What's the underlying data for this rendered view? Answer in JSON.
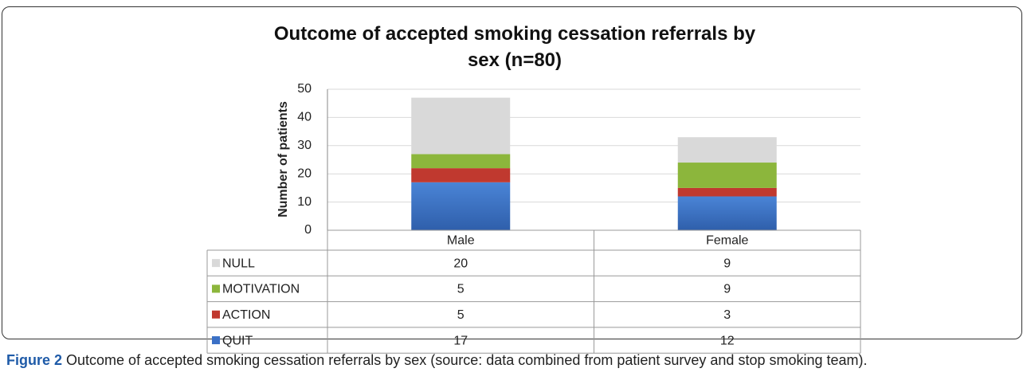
{
  "chart_data": {
    "type": "stacked_bar",
    "title": "Outcome of accepted smoking cessation referrals by sex (n=80)",
    "y_label": "Number of patients",
    "categories": [
      "Male",
      "Female"
    ],
    "series": [
      {
        "name": "QUIT",
        "color": "#3b70c6",
        "values": [
          17,
          12
        ]
      },
      {
        "name": "ACTION",
        "color": "#c0392f",
        "values": [
          5,
          3
        ]
      },
      {
        "name": "MOTIVATION",
        "color": "#8cb63c",
        "values": [
          5,
          9
        ]
      },
      {
        "name": "NULL",
        "color": "#d9d9d9",
        "values": [
          20,
          9
        ]
      }
    ],
    "ylim": [
      0,
      50
    ],
    "yticks": [
      0,
      10,
      20,
      30,
      40,
      50
    ],
    "grid": true
  },
  "caption": {
    "label": "Figure 2",
    "text": "Outcome of accepted smoking cessation referrals by sex (source: data combined from patient survey and stop smoking team)."
  }
}
